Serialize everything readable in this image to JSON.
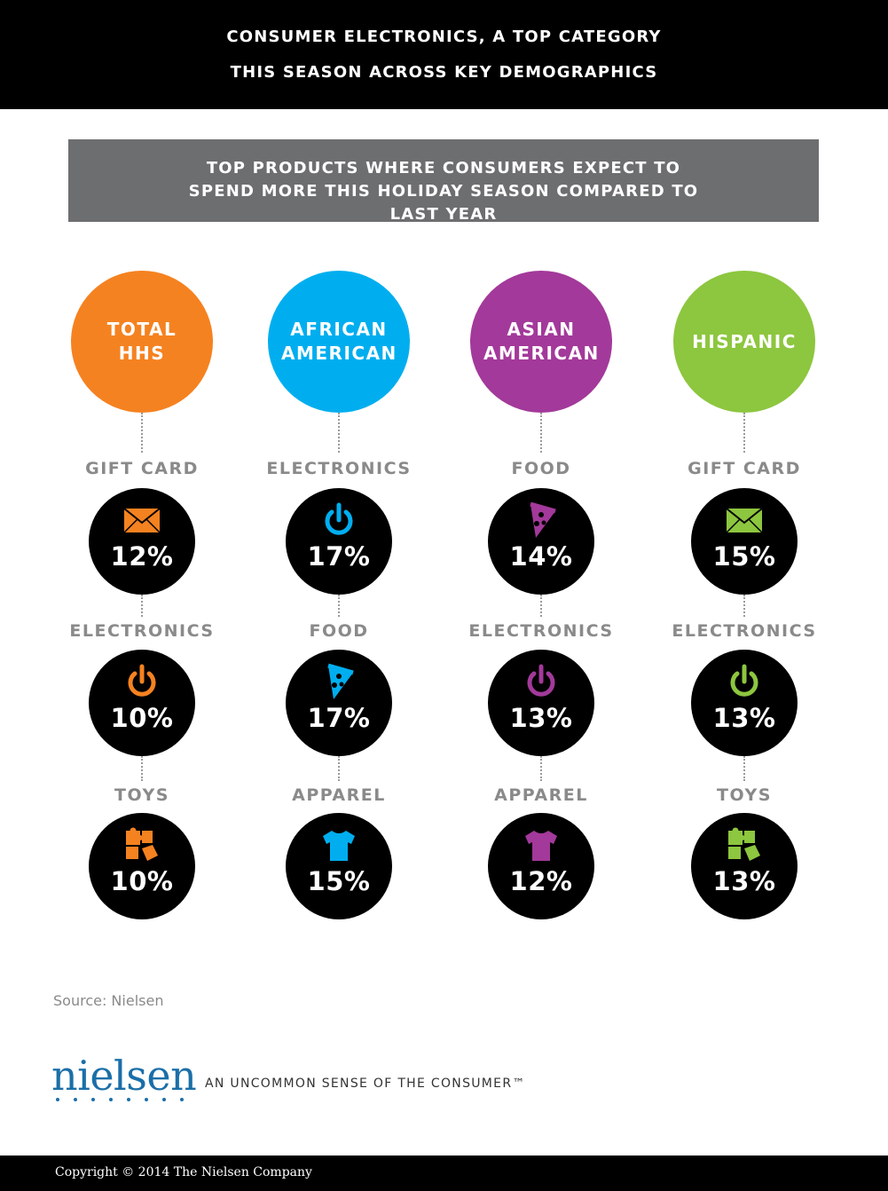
{
  "header": {
    "title_line1": "CONSUMER ELECTRONICS, A TOP CATEGORY",
    "title_line2": "THIS SEASON ACROSS KEY DEMOGRAPHICS"
  },
  "subheader": {
    "text": "TOP PRODUCTS WHERE CONSUMERS EXPECT TO SPEND MORE THIS HOLIDAY SEASON COMPARED TO LAST YEAR"
  },
  "chart_data": {
    "type": "table",
    "unit": "%",
    "groups": [
      {
        "name": "TOTAL HHS",
        "color": "#f58220",
        "items": [
          {
            "category": "GIFT CARD",
            "icon": "envelope-icon",
            "value": 12,
            "label": "12%"
          },
          {
            "category": "ELECTRONICS",
            "icon": "power-icon",
            "value": 10,
            "label": "10%"
          },
          {
            "category": "TOYS",
            "icon": "puzzle-icon",
            "value": 10,
            "label": "10%"
          }
        ]
      },
      {
        "name": "AFRICAN AMERICAN",
        "color": "#00aeef",
        "items": [
          {
            "category": "ELECTRONICS",
            "icon": "power-icon",
            "value": 17,
            "label": "17%"
          },
          {
            "category": "FOOD",
            "icon": "pizza-icon",
            "value": 17,
            "label": "17%"
          },
          {
            "category": "APPAREL",
            "icon": "tshirt-icon",
            "value": 15,
            "label": "15%"
          }
        ]
      },
      {
        "name": "ASIAN AMERICAN",
        "color": "#a3399a",
        "items": [
          {
            "category": "FOOD",
            "icon": "pizza-icon",
            "value": 14,
            "label": "14%"
          },
          {
            "category": "ELECTRONICS",
            "icon": "power-icon",
            "value": 13,
            "label": "13%"
          },
          {
            "category": "APPAREL",
            "icon": "tshirt-icon",
            "value": 12,
            "label": "12%"
          }
        ]
      },
      {
        "name": "HISPANIC",
        "color": "#8dc63f",
        "items": [
          {
            "category": "GIFT CARD",
            "icon": "envelope-icon",
            "value": 15,
            "label": "15%"
          },
          {
            "category": "ELECTRONICS",
            "icon": "power-icon",
            "value": 13,
            "label": "13%"
          },
          {
            "category": "TOYS",
            "icon": "puzzle-icon",
            "value": 13,
            "label": "13%"
          }
        ]
      }
    ]
  },
  "source": "Source: Nielsen",
  "brand": {
    "logo_text": "nielsen",
    "tagline": "AN UNCOMMON SENSE OF THE CONSUMER™",
    "logo_color": "#1b6fa8"
  },
  "footer": {
    "copyright": "Copyright © 2014 The Nielsen Company"
  }
}
